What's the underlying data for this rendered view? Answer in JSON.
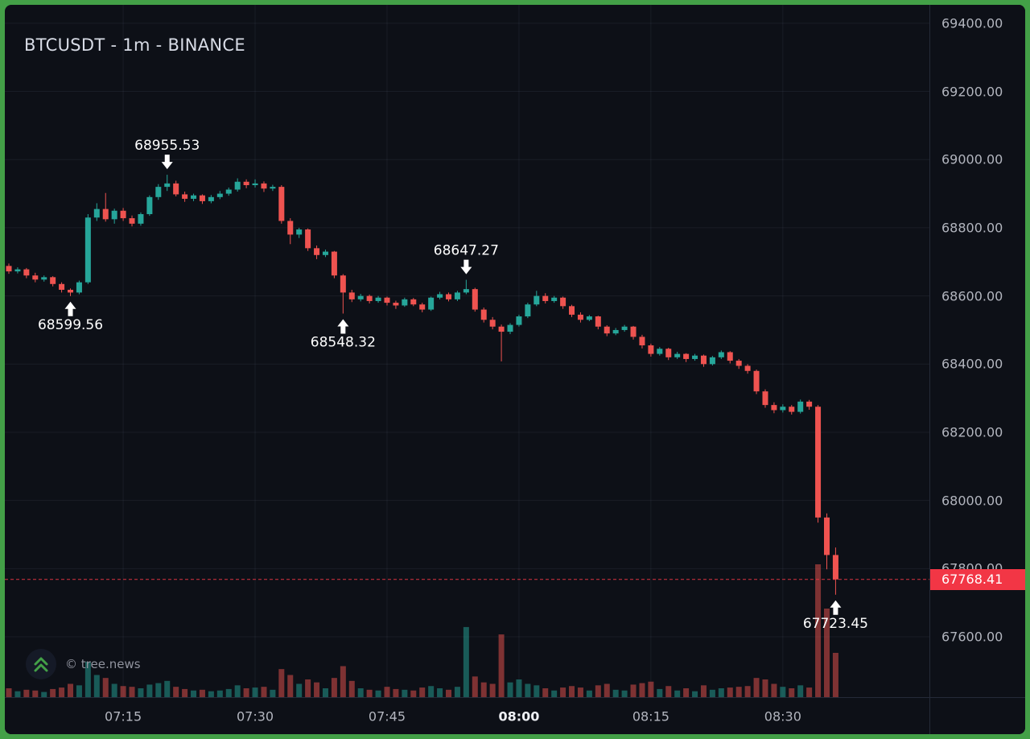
{
  "colors": {
    "up": "#26a69a",
    "down": "#ef5350",
    "line": "#f23645",
    "frame": "#43a047",
    "background": "#0d1017",
    "axis_text": "#b2b5be",
    "tag_background": "#f23645"
  },
  "watermark": {
    "copyright": "© tree.news",
    "logo_icon": "double-chevron-up"
  },
  "chart_data": {
    "type": "candlestick",
    "title": "BTCUSDT - 1m - BINANCE",
    "symbol": "BTCUSDT",
    "interval": "1m",
    "exchange": "BINANCE",
    "start_time": "07:02",
    "step_minutes": 1,
    "columns": [
      "open",
      "high",
      "low",
      "close",
      "volume"
    ],
    "current_price": 67768.41,
    "current_price_label": "67768.41",
    "volume_max": 180,
    "grid": true,
    "y_axis": {
      "min": 67423,
      "max": 69454,
      "ticks": [
        {
          "label": "69400.00",
          "value": 69400
        },
        {
          "label": "69200.00",
          "value": 69200
        },
        {
          "label": "69000.00",
          "value": 69000
        },
        {
          "label": "68800.00",
          "value": 68800
        },
        {
          "label": "68600.00",
          "value": 68600
        },
        {
          "label": "68400.00",
          "value": 68400
        },
        {
          "label": "68200.00",
          "value": 68200
        },
        {
          "label": "68000.00",
          "value": 68000
        },
        {
          "label": "67800.00",
          "value": 67800
        },
        {
          "label": "67600.00",
          "value": 67600
        }
      ]
    },
    "x_axis": {
      "ticks": [
        {
          "label": "07:15",
          "index": 13,
          "emphasis": false
        },
        {
          "label": "07:30",
          "index": 28,
          "emphasis": false
        },
        {
          "label": "07:45",
          "index": 43,
          "emphasis": false
        },
        {
          "label": "08:00",
          "index": 58,
          "emphasis": true
        },
        {
          "label": "08:15",
          "index": 73,
          "emphasis": false
        },
        {
          "label": "08:30",
          "index": 88,
          "emphasis": false
        }
      ]
    },
    "annotations": [
      {
        "label": "68599.56",
        "index": 7,
        "price": 68599.56,
        "direction": "up"
      },
      {
        "label": "68955.53",
        "index": 18,
        "price": 68955.53,
        "direction": "down"
      },
      {
        "label": "68548.32",
        "index": 38,
        "price": 68548.32,
        "direction": "up"
      },
      {
        "label": "68647.27",
        "index": 52,
        "price": 68647.27,
        "direction": "down"
      },
      {
        "label": "67723.45",
        "index": 94,
        "price": 67723.45,
        "direction": "up"
      }
    ],
    "candles": [
      [
        68688,
        68695,
        68665,
        68672,
        12
      ],
      [
        68672,
        68684,
        68666,
        68678,
        8
      ],
      [
        68678,
        68682,
        68652,
        68660,
        10
      ],
      [
        68660,
        68668,
        68640,
        68648,
        9
      ],
      [
        68648,
        68660,
        68642,
        68655,
        7
      ],
      [
        68655,
        68658,
        68628,
        68635,
        11
      ],
      [
        68635,
        68640,
        68610,
        68618,
        13
      ],
      [
        68618,
        68622,
        68599.56,
        68610,
        18
      ],
      [
        68610,
        68645,
        68605,
        68640,
        16
      ],
      [
        68640,
        68840,
        68635,
        68830,
        48
      ],
      [
        68830,
        68872,
        68820,
        68855,
        30
      ],
      [
        68855,
        68902,
        68818,
        68825,
        26
      ],
      [
        68825,
        68856,
        68812,
        68850,
        18
      ],
      [
        68850,
        68858,
        68820,
        68828,
        15
      ],
      [
        68828,
        68836,
        68804,
        68812,
        14
      ],
      [
        68812,
        68845,
        68806,
        68840,
        12
      ],
      [
        68840,
        68895,
        68835,
        68890,
        17
      ],
      [
        68890,
        68928,
        68882,
        68920,
        19
      ],
      [
        68920,
        68955.53,
        68908,
        68930,
        22
      ],
      [
        68930,
        68938,
        68892,
        68898,
        14
      ],
      [
        68898,
        68906,
        68876,
        68885,
        11
      ],
      [
        68885,
        68900,
        68878,
        68895,
        9
      ],
      [
        68895,
        68898,
        68870,
        68878,
        10
      ],
      [
        68878,
        68896,
        68872,
        68890,
        8
      ],
      [
        68890,
        68908,
        68884,
        68900,
        9
      ],
      [
        68900,
        68918,
        68894,
        68912,
        11
      ],
      [
        68912,
        68945,
        68906,
        68935,
        16
      ],
      [
        68935,
        68942,
        68916,
        68925,
        12
      ],
      [
        68925,
        68942,
        68918,
        68930,
        13
      ],
      [
        68930,
        68936,
        68905,
        68915,
        14
      ],
      [
        68915,
        68926,
        68908,
        68920,
        10
      ],
      [
        68920,
        68925,
        68812,
        68820,
        38
      ],
      [
        68820,
        68828,
        68752,
        68780,
        30
      ],
      [
        68780,
        68800,
        68770,
        68795,
        18
      ],
      [
        68795,
        68798,
        68732,
        68740,
        24
      ],
      [
        68740,
        68748,
        68708,
        68720,
        20
      ],
      [
        68720,
        68736,
        68714,
        68730,
        12
      ],
      [
        68730,
        68732,
        68652,
        68660,
        26
      ],
      [
        68660,
        68664,
        68548.32,
        68610,
        42
      ],
      [
        68610,
        68618,
        68582,
        68590,
        22
      ],
      [
        68590,
        68606,
        68584,
        68600,
        12
      ],
      [
        68600,
        68604,
        68578,
        68585,
        10
      ],
      [
        68585,
        68600,
        68580,
        68595,
        9
      ],
      [
        68595,
        68598,
        68572,
        68580,
        14
      ],
      [
        68580,
        68586,
        68562,
        68572,
        11
      ],
      [
        68572,
        68595,
        68568,
        68590,
        10
      ],
      [
        68590,
        68594,
        68570,
        68575,
        9
      ],
      [
        68575,
        68580,
        68552,
        68560,
        13
      ],
      [
        68560,
        68598,
        68556,
        68595,
        15
      ],
      [
        68595,
        68612,
        68590,
        68605,
        12
      ],
      [
        68605,
        68610,
        68584,
        68590,
        10
      ],
      [
        68590,
        68615,
        68585,
        68610,
        14
      ],
      [
        68610,
        68647.27,
        68605,
        68620,
        95
      ],
      [
        68620,
        68624,
        68554,
        68560,
        28
      ],
      [
        68560,
        68566,
        68522,
        68530,
        20
      ],
      [
        68530,
        68538,
        68502,
        68510,
        18
      ],
      [
        68510,
        68516,
        68408,
        68495,
        85
      ],
      [
        68495,
        68520,
        68488,
        68515,
        20
      ],
      [
        68515,
        68545,
        68510,
        68540,
        24
      ],
      [
        68540,
        68580,
        68535,
        68575,
        18
      ],
      [
        68575,
        68615,
        68570,
        68600,
        16
      ],
      [
        68600,
        68608,
        68578,
        68585,
        12
      ],
      [
        68585,
        68600,
        68580,
        68595,
        9
      ],
      [
        68595,
        68598,
        68562,
        68570,
        13
      ],
      [
        68570,
        68574,
        68538,
        68545,
        15
      ],
      [
        68545,
        68552,
        68522,
        68530,
        13
      ],
      [
        68530,
        68544,
        68526,
        68540,
        9
      ],
      [
        68540,
        68542,
        68502,
        68510,
        16
      ],
      [
        68510,
        68514,
        68482,
        68490,
        18
      ],
      [
        68490,
        68506,
        68485,
        68500,
        10
      ],
      [
        68500,
        68515,
        68495,
        68510,
        9
      ],
      [
        68510,
        68512,
        68472,
        68480,
        17
      ],
      [
        68480,
        68486,
        68446,
        68455,
        19
      ],
      [
        68455,
        68460,
        68422,
        68430,
        21
      ],
      [
        68430,
        68450,
        68425,
        68445,
        11
      ],
      [
        68445,
        68448,
        68412,
        68420,
        15
      ],
      [
        68420,
        68436,
        68415,
        68430,
        9
      ],
      [
        68430,
        68432,
        68406,
        68415,
        12
      ],
      [
        68415,
        68430,
        68410,
        68425,
        8
      ],
      [
        68425,
        68428,
        68392,
        68400,
        16
      ],
      [
        68400,
        68424,
        68396,
        68420,
        10
      ],
      [
        68420,
        68440,
        68415,
        68435,
        12
      ],
      [
        68435,
        68438,
        68402,
        68410,
        13
      ],
      [
        68410,
        68415,
        68386,
        68395,
        14
      ],
      [
        68395,
        68400,
        68372,
        68380,
        15
      ],
      [
        68380,
        68384,
        68312,
        68320,
        26
      ],
      [
        68320,
        68326,
        68272,
        68280,
        24
      ],
      [
        68280,
        68288,
        68256,
        68265,
        18
      ],
      [
        68265,
        68282,
        68258,
        68275,
        14
      ],
      [
        68275,
        68280,
        68252,
        68260,
        12
      ],
      [
        68260,
        68296,
        68255,
        68290,
        16
      ],
      [
        68290,
        68295,
        68266,
        68275,
        13
      ],
      [
        68275,
        68280,
        67935,
        67950,
        180
      ],
      [
        67950,
        67962,
        67798,
        67840,
        120
      ],
      [
        67840,
        67862,
        67723.45,
        67768.41,
        60
      ]
    ]
  }
}
